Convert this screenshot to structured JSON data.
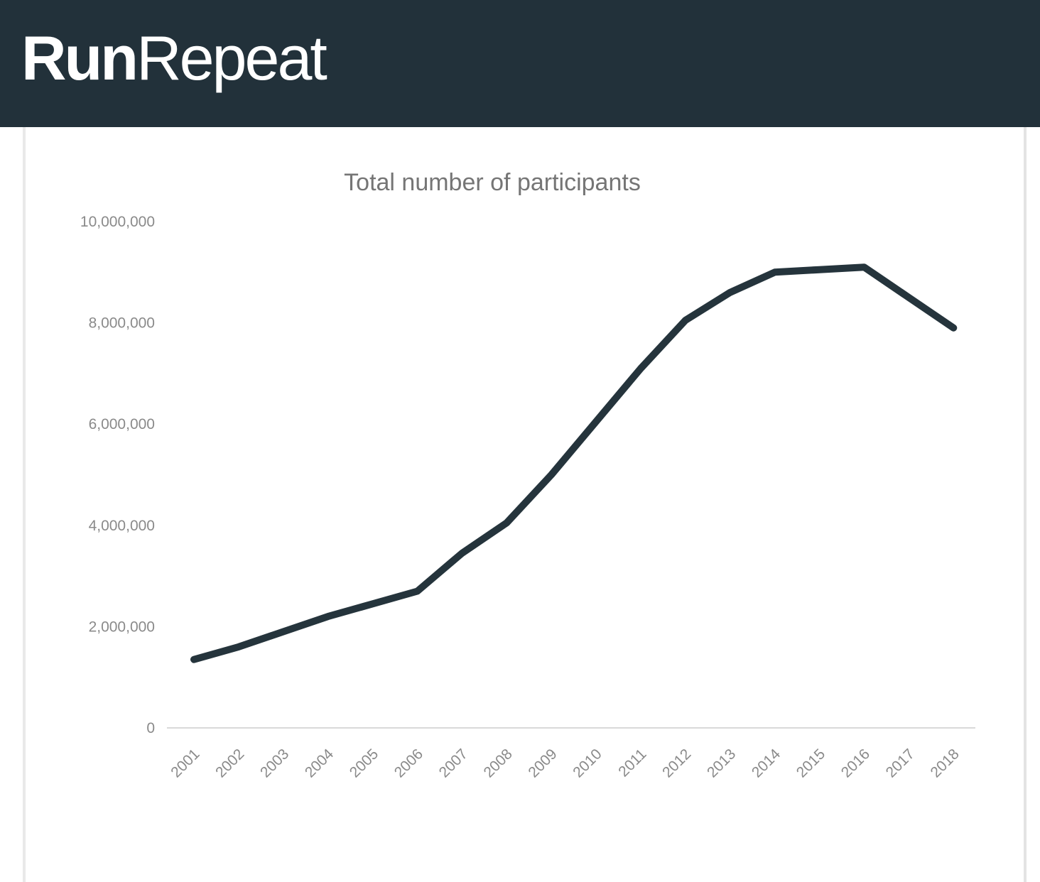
{
  "header": {
    "brand_bold": "Run",
    "brand_light": "Repeat",
    "background_color": "#22313a",
    "text_color": "#ffffff"
  },
  "chart_data": {
    "type": "line",
    "title": "Total number of participants",
    "xlabel": "",
    "ylabel": "",
    "legend": "none",
    "grid": false,
    "x": [
      "2001",
      "2002",
      "2003",
      "2004",
      "2005",
      "2006",
      "2007",
      "2008",
      "2009",
      "2010",
      "2011",
      "2012",
      "2013",
      "2014",
      "2015",
      "2016",
      "2017",
      "2018"
    ],
    "series": [
      {
        "name": "Total number of participants",
        "values": [
          1350000,
          1600000,
          1900000,
          2200000,
          2450000,
          2700000,
          3450000,
          4050000,
          5000000,
          6050000,
          7100000,
          8050000,
          8600000,
          9000000,
          9050000,
          9100000,
          8500000,
          7900000
        ],
        "color": "#25343c"
      }
    ],
    "ylim": [
      0,
      10000000
    ],
    "y_ticks": [
      {
        "v": 0,
        "label": "0"
      },
      {
        "v": 2000000,
        "label": "2,000,000"
      },
      {
        "v": 4000000,
        "label": "4,000,000"
      },
      {
        "v": 6000000,
        "label": "6,000,000"
      },
      {
        "v": 8000000,
        "label": "8,000,000"
      },
      {
        "v": 10000000,
        "label": "10,000,000"
      }
    ],
    "x_tick_rotation_deg": -45,
    "axis_line_color": "#d9d9d9",
    "tick_text_color": "#8a8a8a",
    "title_color": "#757575"
  }
}
